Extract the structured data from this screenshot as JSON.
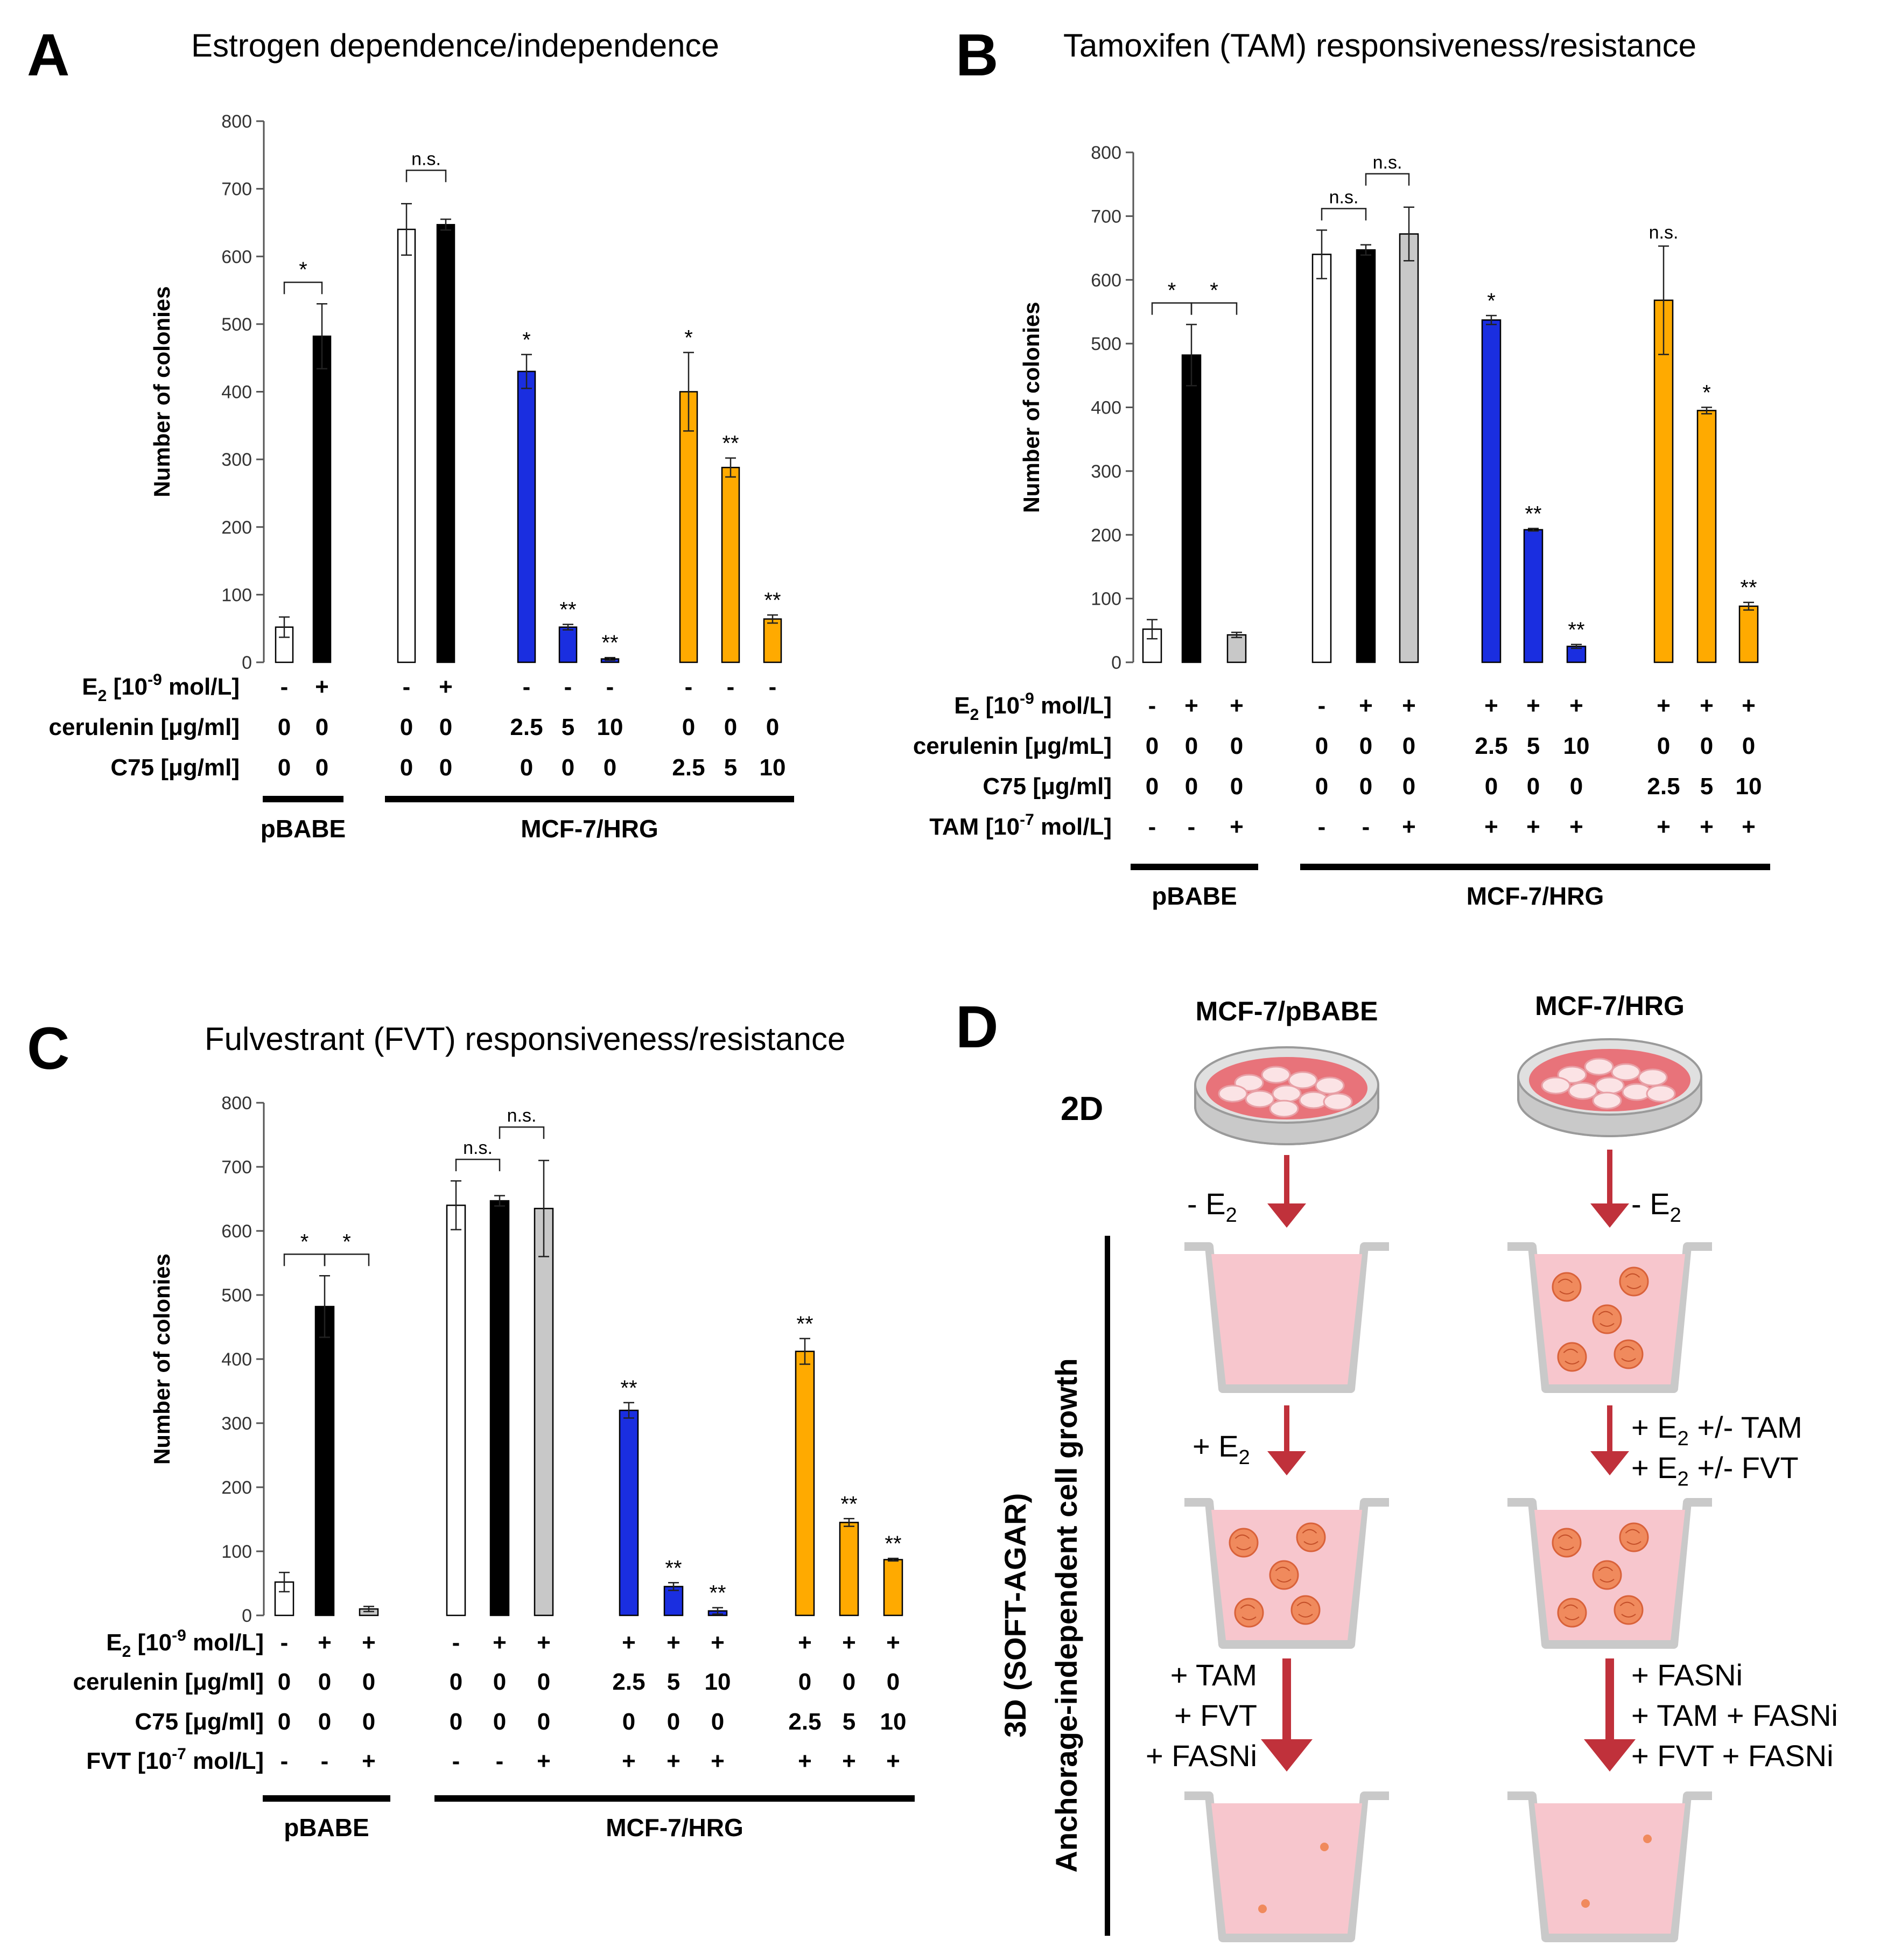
{
  "colors": {
    "white": "#ffffff",
    "black": "#000000",
    "gray": "#c8c8c8",
    "blue": "#1a2ee0",
    "orange": "#ffaa00",
    "dish": "#e8737a",
    "well": "#f7c6cd",
    "arrow": "#c0313b",
    "colony": "#f08a5d"
  },
  "chart_data": [
    {
      "panel": "A",
      "type": "bar",
      "title": "Estrogen dependence/independence",
      "ylabel": "Number of colonies",
      "ylim": [
        0,
        800
      ],
      "yticks": [
        "0",
        "100",
        "200",
        "300",
        "400",
        "500",
        "600",
        "700",
        "800"
      ],
      "bars": [
        {
          "value": 52,
          "err": 15,
          "color": "white",
          "sig": ""
        },
        {
          "value": 482,
          "err": 48,
          "color": "black",
          "sig": ""
        },
        {
          "value": 640,
          "err": 38,
          "color": "white",
          "sig": ""
        },
        {
          "value": 647,
          "err": 8,
          "color": "black",
          "sig": ""
        },
        {
          "value": 430,
          "err": 25,
          "color": "blue",
          "sig": "*"
        },
        {
          "value": 52,
          "err": 4,
          "color": "blue",
          "sig": "**"
        },
        {
          "value": 5,
          "err": 2,
          "color": "blue",
          "sig": "**"
        },
        {
          "value": 400,
          "err": 58,
          "color": "orange",
          "sig": "*"
        },
        {
          "value": 288,
          "err": 14,
          "color": "orange",
          "sig": "**"
        },
        {
          "value": 64,
          "err": 6,
          "color": "orange",
          "sig": "**"
        }
      ],
      "brackets": [
        {
          "from": 0,
          "to": 1,
          "label": "*"
        },
        {
          "from": 2,
          "to": 3,
          "label": "n.s."
        }
      ],
      "rows": [
        {
          "label": "E2 [10-9 mol/L]",
          "cells": [
            "-",
            "+",
            "-",
            "+",
            "-",
            "-",
            "-",
            "-",
            "-",
            "-"
          ]
        },
        {
          "label": "cerulenin [μg/ml]",
          "cells": [
            "0",
            "0",
            "0",
            "0",
            "2.5",
            "5",
            "10",
            "0",
            "0",
            "0"
          ]
        },
        {
          "label": "C75 [μg/ml]",
          "cells": [
            "0",
            "0",
            "0",
            "0",
            "0",
            "0",
            "0",
            "2.5",
            "5",
            "10"
          ]
        }
      ],
      "groups": [
        {
          "label": "pBABE",
          "from": 0,
          "to": 1
        },
        {
          "label": "MCF-7/HRG",
          "from": 2,
          "to": 9
        }
      ]
    },
    {
      "panel": "B",
      "type": "bar",
      "title": "Tamoxifen (TAM) responsiveness/resistance",
      "ylabel": "Number of colonies",
      "ylim": [
        0,
        800
      ],
      "yticks": [
        "0",
        "100",
        "200",
        "300",
        "400",
        "500",
        "600",
        "700",
        "800"
      ],
      "bars": [
        {
          "value": 52,
          "err": 15,
          "color": "white",
          "sig": ""
        },
        {
          "value": 482,
          "err": 48,
          "color": "black",
          "sig": ""
        },
        {
          "value": 43,
          "err": 4,
          "color": "gray",
          "sig": ""
        },
        {
          "value": 640,
          "err": 38,
          "color": "white",
          "sig": ""
        },
        {
          "value": 647,
          "err": 8,
          "color": "black",
          "sig": ""
        },
        {
          "value": 672,
          "err": 42,
          "color": "gray",
          "sig": ""
        },
        {
          "value": 537,
          "err": 7,
          "color": "blue",
          "sig": "*"
        },
        {
          "value": 208,
          "err": 2,
          "color": "blue",
          "sig": "**"
        },
        {
          "value": 25,
          "err": 3,
          "color": "blue",
          "sig": "**"
        },
        {
          "value": 568,
          "err": 85,
          "color": "orange",
          "sig": "n.s."
        },
        {
          "value": 395,
          "err": 5,
          "color": "orange",
          "sig": "*"
        },
        {
          "value": 88,
          "err": 6,
          "color": "orange",
          "sig": "**"
        }
      ],
      "brackets": [
        {
          "from": 0,
          "to": 1,
          "label": "*"
        },
        {
          "from": 1,
          "to": 2,
          "label": "*"
        },
        {
          "from": 3,
          "to": 4,
          "label": "n.s."
        },
        {
          "from": 4,
          "to": 5,
          "label": "n.s."
        }
      ],
      "rows": [
        {
          "label": "E2 [10-9 mol/L]",
          "cells": [
            "-",
            "+",
            "+",
            "-",
            "+",
            "+",
            "+",
            "+",
            "+",
            "+",
            "+",
            "+"
          ]
        },
        {
          "label": "cerulenin [μg/mL]",
          "cells": [
            "0",
            "0",
            "0",
            "0",
            "0",
            "0",
            "2.5",
            "5",
            "10",
            "0",
            "0",
            "0"
          ]
        },
        {
          "label": "C75 [μg/ml]",
          "cells": [
            "0",
            "0",
            "0",
            "0",
            "0",
            "0",
            "0",
            "0",
            "0",
            "2.5",
            "5",
            "10"
          ]
        },
        {
          "label": "TAM [10-7 mol/L]",
          "cells": [
            "-",
            "-",
            "+",
            "-",
            "-",
            "+",
            "+",
            "+",
            "+",
            "+",
            "+",
            "+"
          ]
        }
      ],
      "groups": [
        {
          "label": "pBABE",
          "from": 0,
          "to": 2
        },
        {
          "label": "MCF-7/HRG",
          "from": 3,
          "to": 11
        }
      ]
    },
    {
      "panel": "C",
      "type": "bar",
      "title": "Fulvestrant (FVT) responsiveness/resistance",
      "ylabel": "Number of colonies",
      "ylim": [
        0,
        800
      ],
      "yticks": [
        "0",
        "100",
        "200",
        "300",
        "400",
        "500",
        "600",
        "700",
        "800"
      ],
      "bars": [
        {
          "value": 52,
          "err": 15,
          "color": "white",
          "sig": ""
        },
        {
          "value": 482,
          "err": 48,
          "color": "black",
          "sig": ""
        },
        {
          "value": 10,
          "err": 4,
          "color": "gray",
          "sig": ""
        },
        {
          "value": 640,
          "err": 38,
          "color": "white",
          "sig": ""
        },
        {
          "value": 647,
          "err": 8,
          "color": "black",
          "sig": ""
        },
        {
          "value": 635,
          "err": 75,
          "color": "gray",
          "sig": ""
        },
        {
          "value": 320,
          "err": 12,
          "color": "blue",
          "sig": "**"
        },
        {
          "value": 45,
          "err": 6,
          "color": "blue",
          "sig": "**"
        },
        {
          "value": 7,
          "err": 5,
          "color": "blue",
          "sig": "**"
        },
        {
          "value": 412,
          "err": 20,
          "color": "orange",
          "sig": "**"
        },
        {
          "value": 145,
          "err": 6,
          "color": "orange",
          "sig": "**"
        },
        {
          "value": 87,
          "err": 2,
          "color": "orange",
          "sig": "**"
        }
      ],
      "brackets": [
        {
          "from": 0,
          "to": 1,
          "label": "*"
        },
        {
          "from": 1,
          "to": 2,
          "label": "*"
        },
        {
          "from": 3,
          "to": 4,
          "label": "n.s."
        },
        {
          "from": 4,
          "to": 5,
          "label": "n.s."
        }
      ],
      "rows": [
        {
          "label": "E2 [10-9 mol/L]",
          "cells": [
            "-",
            "+",
            "+",
            "-",
            "+",
            "+",
            "+",
            "+",
            "+",
            "+",
            "+",
            "+"
          ]
        },
        {
          "label": "cerulenin [μg/ml]",
          "cells": [
            "0",
            "0",
            "0",
            "0",
            "0",
            "0",
            "2.5",
            "5",
            "10",
            "0",
            "0",
            "0"
          ]
        },
        {
          "label": "C75 [μg/ml]",
          "cells": [
            "0",
            "0",
            "0",
            "0",
            "0",
            "0",
            "0",
            "0",
            "0",
            "2.5",
            "5",
            "10"
          ]
        },
        {
          "label": "FVT [10-7 mol/L]",
          "cells": [
            "-",
            "-",
            "+",
            "-",
            "-",
            "+",
            "+",
            "+",
            "+",
            "+",
            "+",
            "+"
          ]
        }
      ],
      "groups": [
        {
          "label": "pBABE",
          "from": 0,
          "to": 2
        },
        {
          "label": "MCF-7/HRG",
          "from": 3,
          "to": 11
        }
      ]
    }
  ],
  "panelD": {
    "letter": "D",
    "col_left": "MCF-7/pBABE",
    "col_right": "MCF-7/HRG",
    "label_2d": "2D",
    "vertical_label": "3D (SOFT-AGAR)",
    "vertical_label2": "Anchorage-independent cell growth",
    "step1_left": "- E2",
    "step1_right": "- E2",
    "step2_left": "+ E2",
    "step2_right": [
      "+ E2 +/- TAM",
      "+ E2 +/- FVT"
    ],
    "step3_left": [
      "+ TAM",
      "+ FVT",
      "+ FASNi"
    ],
    "step3_right": [
      "+ FASNi",
      "+ TAM + FASNi",
      "+ FVT + FASNi"
    ]
  }
}
